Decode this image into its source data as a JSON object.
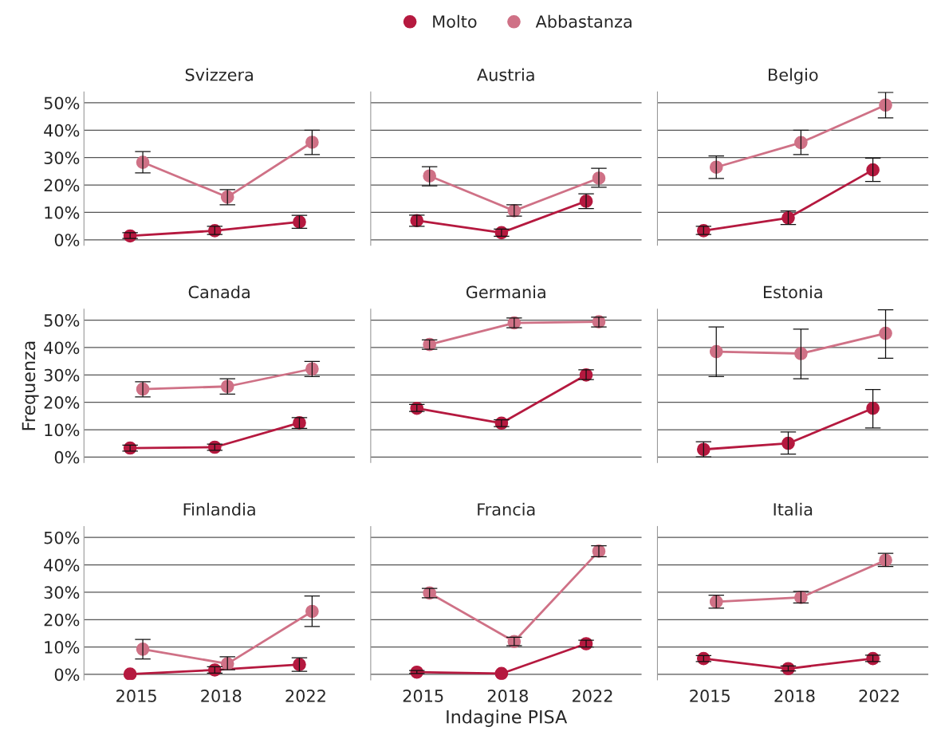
{
  "chart_data": [
    {
      "type": "line",
      "title": "Svizzera",
      "categories": [
        "2015",
        "2018",
        "2022"
      ],
      "ylim": [
        -2,
        54
      ],
      "yticks": [
        {
          "value": 0,
          "label": "0%"
        },
        {
          "value": 10,
          "label": "10%"
        },
        {
          "value": 20,
          "label": "20%"
        },
        {
          "value": 30,
          "label": "30%"
        },
        {
          "value": 40,
          "label": "40%"
        },
        {
          "value": 50,
          "label": "50%"
        }
      ],
      "grid": "y",
      "marker": "circle",
      "line_style": "solid",
      "legend": "top",
      "tick_labels": "y",
      "series": [
        {
          "name": "Molto",
          "color": "#b5193f",
          "values": [
            1.4,
            3.3,
            6.5
          ],
          "errors": [
            [
              0.5,
              2.6
            ],
            [
              1.9,
              4.9
            ],
            [
              4.2,
              8.9
            ]
          ]
        },
        {
          "name": "Abbastanza",
          "color": "#cf7186",
          "values": [
            28.3,
            15.6,
            35.6
          ],
          "errors": [
            [
              24.4,
              32.2
            ],
            [
              12.8,
              18.3
            ],
            [
              31.1,
              40.0
            ]
          ]
        }
      ]
    },
    {
      "type": "line",
      "title": "Austria",
      "categories": [
        "2015",
        "2018",
        "2022"
      ],
      "ylim": [
        -2,
        54
      ],
      "yticks": [
        0,
        10,
        20,
        30,
        40,
        50
      ],
      "grid": "y",
      "marker": "circle",
      "line_style": "solid",
      "tick_labels": false,
      "series": [
        {
          "color": "#b5193f",
          "values": [
            7.0,
            2.6,
            14.1
          ],
          "errors": [
            [
              4.9,
              9.0
            ],
            [
              1.3,
              3.9
            ],
            [
              11.4,
              16.8
            ]
          ]
        },
        {
          "color": "#cf7186",
          "values": [
            23.3,
            10.6,
            22.5
          ],
          "errors": [
            [
              19.7,
              26.7
            ],
            [
              8.6,
              12.8
            ],
            [
              19.2,
              26.1
            ]
          ]
        }
      ]
    },
    {
      "type": "line",
      "title": "Belgio",
      "categories": [
        "2015",
        "2018",
        "2022"
      ],
      "ylim": [
        -2,
        54
      ],
      "yticks": [
        0,
        10,
        20,
        30,
        40,
        50
      ],
      "grid": "y",
      "marker": "circle",
      "line_style": "solid",
      "tick_labels": false,
      "series": [
        {
          "color": "#b5193f",
          "values": [
            3.3,
            8.0,
            25.5
          ],
          "errors": [
            [
              1.9,
              4.9
            ],
            [
              5.6,
              10.5
            ],
            [
              21.3,
              29.8
            ]
          ]
        },
        {
          "color": "#cf7186",
          "values": [
            26.5,
            35.5,
            49.2
          ],
          "errors": [
            [
              22.4,
              30.6
            ],
            [
              31.1,
              40.0
            ],
            [
              44.5,
              53.8
            ]
          ]
        }
      ]
    },
    {
      "type": "line",
      "title": "Canada",
      "ylabel": "Frequenza",
      "categories": [
        "2015",
        "2018",
        "2022"
      ],
      "ylim": [
        -2,
        54
      ],
      "yticks": [
        {
          "value": 0,
          "label": "0%"
        },
        {
          "value": 10,
          "label": "10%"
        },
        {
          "value": 20,
          "label": "20%"
        },
        {
          "value": 30,
          "label": "30%"
        },
        {
          "value": 40,
          "label": "40%"
        },
        {
          "value": 50,
          "label": "50%"
        }
      ],
      "grid": "y",
      "marker": "circle",
      "line_style": "solid",
      "tick_labels": "y",
      "series": [
        {
          "color": "#b5193f",
          "values": [
            3.3,
            3.6,
            12.5
          ],
          "errors": [
            [
              2.2,
              4.4
            ],
            [
              2.5,
              4.7
            ],
            [
              10.5,
              14.4
            ]
          ]
        },
        {
          "color": "#cf7186",
          "values": [
            24.8,
            25.8,
            32.2
          ],
          "errors": [
            [
              22.0,
              27.5
            ],
            [
              23.0,
              28.6
            ],
            [
              29.4,
              34.9
            ]
          ]
        }
      ]
    },
    {
      "type": "line",
      "title": "Germania",
      "categories": [
        "2015",
        "2018",
        "2022"
      ],
      "ylim": [
        -2,
        54
      ],
      "yticks": [
        0,
        10,
        20,
        30,
        40,
        50
      ],
      "grid": "y",
      "marker": "circle",
      "line_style": "solid",
      "tick_labels": false,
      "series": [
        {
          "color": "#b5193f",
          "values": [
            17.8,
            12.4,
            30.0
          ],
          "errors": [
            [
              16.7,
              19.2
            ],
            [
              11.1,
              13.6
            ],
            [
              28.3,
              31.9
            ]
          ]
        },
        {
          "color": "#cf7186",
          "values": [
            41.1,
            49.0,
            49.4
          ],
          "errors": [
            [
              39.4,
              42.8
            ],
            [
              47.2,
              50.8
            ],
            [
              47.5,
              51.1
            ]
          ]
        }
      ]
    },
    {
      "type": "line",
      "title": "Estonia",
      "categories": [
        "2015",
        "2018",
        "2022"
      ],
      "ylim": [
        -2,
        54
      ],
      "yticks": [
        0,
        10,
        20,
        30,
        40,
        50
      ],
      "grid": "y",
      "marker": "circle",
      "line_style": "solid",
      "tick_labels": false,
      "series": [
        {
          "color": "#b5193f",
          "values": [
            2.8,
            5.0,
            17.8
          ],
          "errors": [
            [
              0.1,
              5.6
            ],
            [
              1.1,
              9.2
            ],
            [
              10.6,
              24.7
            ]
          ]
        },
        {
          "color": "#cf7186",
          "values": [
            38.5,
            37.8,
            45.2
          ],
          "errors": [
            [
              29.4,
              47.5
            ],
            [
              28.6,
              46.7
            ],
            [
              36.1,
              53.8
            ]
          ]
        }
      ]
    },
    {
      "type": "line",
      "title": "Finlandia",
      "categories": [
        "2015",
        "2018",
        "2022"
      ],
      "ylim": [
        -2,
        54
      ],
      "yticks": [
        {
          "value": 0,
          "label": "0%"
        },
        {
          "value": 10,
          "label": "10%"
        },
        {
          "value": 20,
          "label": "20%"
        },
        {
          "value": 30,
          "label": "30%"
        },
        {
          "value": 40,
          "label": "40%"
        },
        {
          "value": 50,
          "label": "50%"
        }
      ],
      "grid": "y",
      "marker": "circle",
      "line_style": "solid",
      "series": [
        {
          "color": "#b5193f",
          "values": [
            0.1,
            1.6,
            3.6
          ],
          "errors": [
            null,
            [
              0.5,
              2.8
            ],
            [
              1.1,
              6.1
            ]
          ]
        },
        {
          "color": "#cf7186",
          "values": [
            9.2,
            3.9,
            23.0
          ],
          "errors": [
            [
              5.6,
              12.8
            ],
            [
              1.7,
              6.4
            ],
            [
              17.5,
              28.6
            ]
          ]
        }
      ]
    },
    {
      "type": "line",
      "title": "Francia",
      "xlabel": "Indagine PISA",
      "categories": [
        "2015",
        "2018",
        "2022"
      ],
      "ylim": [
        -2,
        54
      ],
      "yticks": [
        0,
        10,
        20,
        30,
        40,
        50
      ],
      "grid": "y",
      "marker": "circle",
      "line_style": "solid",
      "tick_labels": "x",
      "series": [
        {
          "color": "#b5193f",
          "values": [
            0.8,
            0.3,
            11.2
          ],
          "errors": [
            [
              0.3,
              1.4
            ],
            null,
            [
              10.0,
              12.5
            ]
          ]
        },
        {
          "color": "#cf7186",
          "values": [
            29.7,
            12.0,
            45.0
          ],
          "errors": [
            [
              28.0,
              31.4
            ],
            [
              10.5,
              13.6
            ],
            [
              43.0,
              47.0
            ]
          ]
        }
      ]
    },
    {
      "type": "line",
      "title": "Italia",
      "categories": [
        "2015",
        "2018",
        "2022"
      ],
      "ylim": [
        -2,
        54
      ],
      "yticks": [
        0,
        10,
        20,
        30,
        40,
        50
      ],
      "grid": "y",
      "marker": "circle",
      "line_style": "solid",
      "tick_labels": "x",
      "series": [
        {
          "color": "#b5193f",
          "values": [
            5.8,
            2.1,
            5.8
          ],
          "errors": [
            [
              4.7,
              6.9
            ],
            [
              1.3,
              3.1
            ],
            [
              4.7,
              7.0
            ]
          ]
        },
        {
          "color": "#cf7186",
          "values": [
            26.5,
            28.1,
            41.7
          ],
          "errors": [
            [
              24.2,
              28.9
            ],
            [
              26.1,
              30.3
            ],
            [
              39.4,
              44.2
            ]
          ]
        }
      ]
    }
  ]
}
